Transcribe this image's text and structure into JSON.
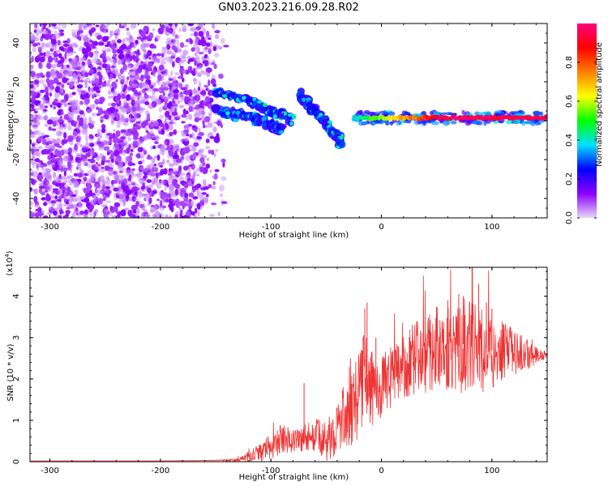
{
  "title": "GN03.2023.216.09.28.R02",
  "chart_data": [
    {
      "type": "heatmap",
      "xlabel": "Height of straight line (km)",
      "ylabel": "Frequency (Hz)",
      "xlim": [
        -318,
        150
      ],
      "ylim": [
        -50,
        50
      ],
      "x_ticks": [
        -300,
        -200,
        -100,
        0,
        100
      ],
      "y_ticks": [
        -40,
        -20,
        0,
        20,
        40
      ],
      "colorbar": {
        "label": "Normalized spectral amplitude",
        "range": [
          0,
          1
        ],
        "ticks": [
          "0.0",
          "0.2",
          "0.4",
          "0.6",
          "0.8"
        ],
        "colors": [
          "#e6d8f8",
          "#8b00ff",
          "#0000ff",
          "#00e0ff",
          "#00ff00",
          "#ffff00",
          "#ff8000",
          "#ff0000",
          "#ff0080"
        ]
      },
      "features": [
        {
          "name": "noise",
          "x_range": [
            -318,
            -140
          ],
          "y_range": [
            -50,
            50
          ],
          "amplitude": 0.1
        },
        {
          "name": "descending band 1",
          "points": [
            [
              -150,
              15
            ],
            [
              -120,
              10
            ],
            [
              -100,
              5
            ],
            [
              -80,
              0
            ]
          ],
          "amplitude": 0.35
        },
        {
          "name": "descending band 2",
          "points": [
            [
              -150,
              5
            ],
            [
              -120,
              2
            ],
            [
              -100,
              -2
            ],
            [
              -90,
              -5
            ]
          ],
          "amplitude": 0.3
        },
        {
          "name": "descending band 3",
          "points": [
            [
              -75,
              14
            ],
            [
              -60,
              5
            ],
            [
              -45,
              -5
            ],
            [
              -35,
              -12
            ]
          ],
          "amplitude": 0.35
        },
        {
          "name": "carrier",
          "points": [
            [
              -25,
              1.5
            ],
            [
              0,
              1.5
            ],
            [
              50,
              1.5
            ],
            [
              100,
              1.5
            ],
            [
              150,
              1.5
            ]
          ],
          "amplitude": 0.9
        }
      ]
    },
    {
      "type": "line",
      "xlabel": "Height of straight line (km)",
      "ylabel": "SNR (10 * v/v)",
      "y_multiplier": "(x10^4)",
      "xlim": [
        -318,
        150
      ],
      "ylim": [
        0,
        4.7
      ],
      "x_ticks": [
        -300,
        -200,
        -100,
        0,
        100
      ],
      "y_ticks": [
        0,
        1,
        2,
        3,
        4
      ],
      "series": [
        {
          "color": "#ee3333",
          "x": [
            -318,
            -300,
            -250,
            -200,
            -150,
            -130,
            -115,
            -100,
            -90,
            -80,
            -70,
            -60,
            -50,
            -40,
            -30,
            -20,
            -15,
            -10,
            -5,
            0,
            10,
            20,
            30,
            40,
            50,
            60,
            70,
            80,
            90,
            100,
            110,
            120,
            130,
            140,
            150
          ],
          "y": [
            0.02,
            0.02,
            0.02,
            0.02,
            0.03,
            0.05,
            0.15,
            0.4,
            0.6,
            0.55,
            0.6,
            0.7,
            0.5,
            0.9,
            1.3,
            1.7,
            2.3,
            1.9,
            1.8,
            1.9,
            2.1,
            2.4,
            2.6,
            2.7,
            2.9,
            2.85,
            2.8,
            2.9,
            2.8,
            2.7,
            2.75,
            2.7,
            2.65,
            2.6,
            2.58
          ]
        }
      ],
      "noise_envelope": [
        0,
        0,
        0,
        0,
        0.01,
        0.05,
        0.2,
        0.4,
        0.45,
        0.4,
        0.45,
        0.5,
        0.6,
        0.8,
        1.1,
        1.3,
        1.6,
        1.2,
        1.0,
        1.0,
        0.9,
        1.0,
        1.1,
        1.2,
        1.3,
        1.3,
        1.3,
        1.4,
        1.3,
        1.1,
        0.9,
        0.7,
        0.5,
        0.3,
        0.1
      ],
      "spikes": [
        [
          -13,
          3.85
        ],
        [
          -15,
          3.7
        ],
        [
          -70,
          1.9
        ],
        [
          -5,
          3.0
        ],
        [
          50,
          3.6
        ],
        [
          60,
          3.9
        ],
        [
          70,
          4.05
        ],
        [
          74,
          4.0
        ],
        [
          82,
          4.75
        ],
        [
          88,
          4.3
        ],
        [
          95,
          3.85
        ],
        [
          100,
          3.7
        ],
        [
          -28,
          2.5
        ]
      ]
    }
  ]
}
